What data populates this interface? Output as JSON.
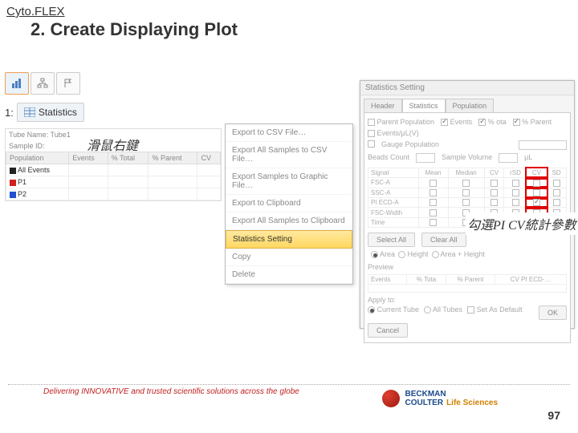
{
  "header": {
    "product": "Cyto.FLEX",
    "title": "2. Create Displaying Plot"
  },
  "ribbon": {
    "icons": [
      "bar-chart-icon",
      "hierarchy-icon",
      "flag-icon"
    ]
  },
  "step1": {
    "num": "1:",
    "button": "Statistics"
  },
  "tube_panel": {
    "line1_left": "Tube Name: Tube1",
    "line1_right": "",
    "line2": "Sample ID:",
    "columns": [
      "Population",
      "Events",
      "% Total",
      "% Parent",
      "CV"
    ],
    "rows": [
      {
        "swatch": "#222222",
        "label": "All Events"
      },
      {
        "swatch": "#d02020",
        "label": "P1"
      },
      {
        "swatch": "#2050d0",
        "label": "P2"
      }
    ]
  },
  "annotation1": "滑鼠右鍵",
  "context_menu": {
    "items": [
      "Export to CSV File…",
      "Export All Samples to CSV File…",
      "Export Samples to Graphic File…",
      "Export to Clipboard",
      "Export All Samples to Clipboard",
      "Statistics Setting",
      "Copy",
      "Delete"
    ],
    "highlight_index": 5
  },
  "settings_dialog": {
    "title": "Statistics Setting",
    "tabs": [
      "Header",
      "Statistics",
      "Population"
    ],
    "active_tab": 1,
    "top_checks": [
      {
        "label": "Parent Population",
        "on": false
      },
      {
        "label": "Events",
        "on": true
      },
      {
        "label": "% ota",
        "on": true
      },
      {
        "label": "% Parent",
        "on": true
      },
      {
        "label": "Events/μL(V)",
        "on": false
      }
    ],
    "gauge_label": "Gauge Population",
    "beads_label": "Beads Count",
    "sample_vol_label": "Sample Volume",
    "ul_label": "μL",
    "signal_columns": [
      "Signal",
      "Mean",
      "Median",
      "CV",
      "rSD",
      "CV",
      "SD"
    ],
    "signal_rows": [
      {
        "name": "FSC-A",
        "cv": false
      },
      {
        "name": "SSC-A",
        "cv": false
      },
      {
        "name": "PI ECD-A",
        "cv": true
      },
      {
        "name": "FSC-Width",
        "cv": false
      },
      {
        "name": "Time",
        "cv": false
      }
    ],
    "red_highlight_col": 5,
    "sel_all": "Select All",
    "clr_all": "Clear All",
    "area_opts": [
      "Area",
      "Height",
      "Area + Height"
    ],
    "area_sel": 0,
    "preview_label": "Preview",
    "preview_cols": [
      "Events",
      "% Tota",
      "% Parent",
      "CV PI ECD-…"
    ],
    "apply_label": "Apply to:",
    "apply_opts": [
      "Current Tube",
      "All Tubes",
      "Set As Default"
    ],
    "apply_sel": 0,
    "ok": "OK",
    "cancel": "Cancel"
  },
  "annotation2": "勾選PI CV統計參數",
  "footer": {
    "tagline": "Delivering INNOVATIVE and trusted scientific solutions across the globe",
    "brand1": "BECKMAN",
    "brand2": "COULTER",
    "brand3": "Life Sciences",
    "page": "97"
  }
}
